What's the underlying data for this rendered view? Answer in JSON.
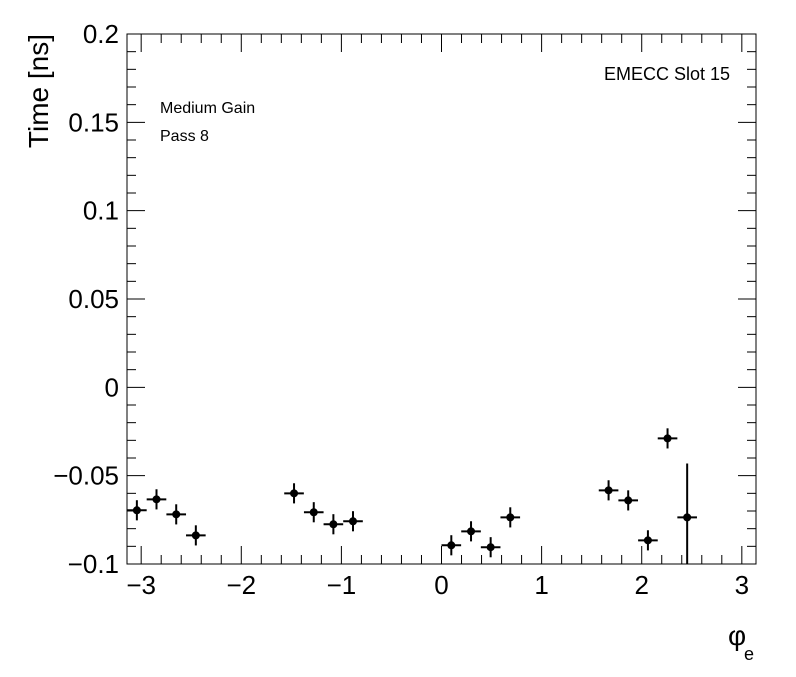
{
  "chart_data": {
    "type": "scatter",
    "title": "",
    "xlabel": "φ",
    "xlabel_sub": "e",
    "ylabel": "Time [ns]",
    "xlim": [
      -3.1416,
      3.1416
    ],
    "ylim": [
      -0.1,
      0.2
    ],
    "grid": false,
    "xticks": [
      -3,
      -2,
      -1,
      0,
      1,
      2,
      3
    ],
    "xtick_labels": [
      "−3",
      "−2",
      "−1",
      "0",
      "1",
      "2",
      "3"
    ],
    "yticks": [
      -0.1,
      -0.05,
      0,
      0.05,
      0.1,
      0.15,
      0.2
    ],
    "ytick_labels": [
      "−0.1",
      "−0.05",
      "0",
      "0.05",
      "0.1",
      "0.15",
      "0.2"
    ],
    "annotations": {
      "top_right": "EMECC Slot 15",
      "line1": "Medium Gain",
      "line2": "Pass 8"
    },
    "marker_color": "#000000",
    "points": [
      {
        "x": -3.043,
        "y": -0.0696,
        "xerr": 0.098,
        "yerr": 0.0057
      },
      {
        "x": -2.847,
        "y": -0.0634,
        "xerr": 0.098,
        "yerr": 0.0057
      },
      {
        "x": -2.65,
        "y": -0.0719,
        "xerr": 0.098,
        "yerr": 0.0057
      },
      {
        "x": -2.454,
        "y": -0.0838,
        "xerr": 0.098,
        "yerr": 0.0057
      },
      {
        "x": -1.473,
        "y": -0.06,
        "xerr": 0.098,
        "yerr": 0.0057
      },
      {
        "x": -1.276,
        "y": -0.0707,
        "xerr": 0.098,
        "yerr": 0.0057
      },
      {
        "x": -1.08,
        "y": -0.0775,
        "xerr": 0.098,
        "yerr": 0.0057
      },
      {
        "x": -0.884,
        "y": -0.0758,
        "xerr": 0.098,
        "yerr": 0.0057
      },
      {
        "x": 0.098,
        "y": -0.0894,
        "xerr": 0.098,
        "yerr": 0.0057
      },
      {
        "x": 0.295,
        "y": -0.0815,
        "xerr": 0.098,
        "yerr": 0.0057
      },
      {
        "x": 0.491,
        "y": -0.0905,
        "xerr": 0.098,
        "yerr": 0.0057
      },
      {
        "x": 0.687,
        "y": -0.0736,
        "xerr": 0.098,
        "yerr": 0.0057
      },
      {
        "x": 1.669,
        "y": -0.0583,
        "xerr": 0.098,
        "yerr": 0.0057
      },
      {
        "x": 1.865,
        "y": -0.064,
        "xerr": 0.098,
        "yerr": 0.0057
      },
      {
        "x": 2.062,
        "y": -0.0866,
        "xerr": 0.098,
        "yerr": 0.0057
      },
      {
        "x": 2.258,
        "y": -0.0289,
        "xerr": 0.098,
        "yerr": 0.0057
      },
      {
        "x": 2.454,
        "y": -0.0736,
        "xerr": 0.098,
        "yerr": 0.0305
      }
    ]
  }
}
